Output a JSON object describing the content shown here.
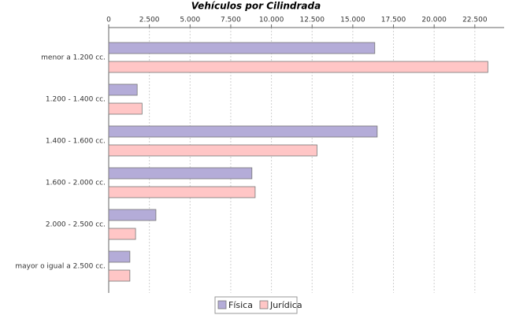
{
  "chart_data": {
    "type": "hbar",
    "title": "Vehículos por Cilindrada",
    "categories": [
      "menor a 1.200 cc.",
      "1.200 - 1.400 cc.",
      "1.400 - 1.600 cc.",
      "1.600 - 2.000 cc.",
      "2.000 - 2.500 cc.",
      "mayor o igual a 2.500 cc."
    ],
    "series": [
      {
        "name": "Física",
        "color": "#b4acd8",
        "values": [
          16350,
          1750,
          16500,
          8800,
          2900,
          1300
        ]
      },
      {
        "name": "Jurídica",
        "color": "#ffc6c6",
        "values": [
          23300,
          2050,
          12800,
          9000,
          1650,
          1300
        ]
      }
    ],
    "xlim": [
      0,
      24300
    ],
    "xticks": [
      0,
      {
        "value": 2500,
        "label": "2.500"
      },
      {
        "value": 5000,
        "label": "5.000"
      },
      {
        "value": 7500,
        "label": "7.500"
      },
      {
        "value": 10000,
        "label": "10.000"
      },
      {
        "value": 12500,
        "label": "12.500"
      },
      {
        "value": 15000,
        "label": "15.000"
      },
      {
        "value": 17500,
        "label": "17.500"
      },
      {
        "value": 20000,
        "label": "20.000"
      },
      {
        "value": 22500,
        "label": "22.500"
      }
    ],
    "grid": true
  }
}
